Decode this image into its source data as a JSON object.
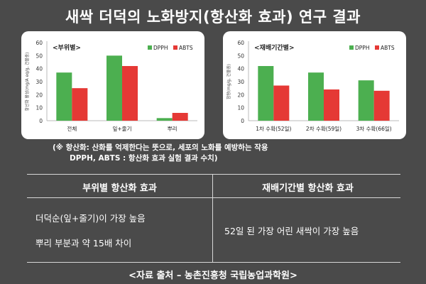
{
  "title": "새싹 더덕의 노화방지(항산화 효과) 연구 결과",
  "colors": {
    "dpph": "#4caf50",
    "abts": "#e53935",
    "background": "#4a4a4a"
  },
  "chart_data": [
    {
      "type": "bar",
      "title": "<부위별>",
      "ylabel": "항산화 활성(mg/A eq/g, 건물중)",
      "ylim": [
        0,
        60
      ],
      "yticks": [
        0,
        10,
        20,
        30,
        40,
        50,
        60
      ],
      "categories": [
        "전체",
        "잎+줄기",
        "뿌리"
      ],
      "series": [
        {
          "name": "DPPH",
          "values": [
            37,
            50,
            2
          ]
        },
        {
          "name": "ABTS",
          "values": [
            25,
            42,
            6
          ]
        }
      ],
      "legend": "top-right",
      "grid": false
    },
    {
      "type": "bar",
      "title": "<재배기간별>",
      "ylabel": "함량(mg/g, 건물중)",
      "ylim": [
        0,
        60
      ],
      "yticks": [
        0,
        10,
        20,
        30,
        40,
        50,
        60
      ],
      "categories": [
        "1차 수확(52일)",
        "2차 수확(59일)",
        "3차 수확(66일)"
      ],
      "series": [
        {
          "name": "DPPH",
          "values": [
            42,
            37,
            31
          ]
        },
        {
          "name": "ABTS",
          "values": [
            27,
            24,
            23
          ]
        }
      ],
      "legend": "top-right",
      "grid": false
    }
  ],
  "note": {
    "line1": "(※ 항산화: 산화를 억제한다는 뜻으로, 세포의 노화를 예방하는 작용",
    "line2": "DPPH, ABTS : 항산화 효과 실험 결과 수치)"
  },
  "table": {
    "left_header": "부위별 항산화 효과",
    "right_header": "재배기간별 항산화 효과",
    "left_line1": "더덕순(잎+줄기)이 가장 높음",
    "left_line2": "뿌리 부분과 약 15배 차이",
    "right_line1": "52일 된 가장 어린 새싹이 가장 높음"
  },
  "source": "<자료 출처 – 농촌진흥청 국립농업과학원>"
}
